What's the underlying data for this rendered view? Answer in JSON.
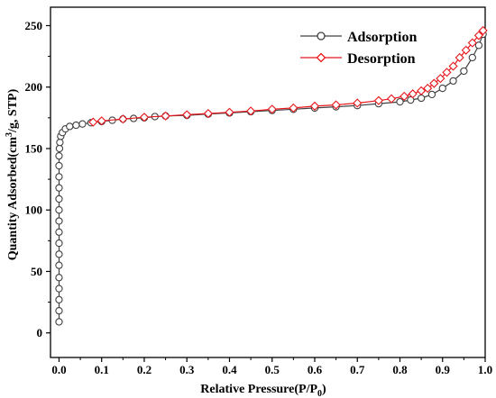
{
  "chart_data": {
    "type": "scatter",
    "xlabel": "Relative Pressure(P/P",
    "xlabel_sub": "0",
    "xlabel_end": ")",
    "ylabel_pre": "Quantity Adsorbed(cm",
    "ylabel_sup": "3",
    "ylabel_post": "/g, STP)",
    "xlim": [
      -0.02,
      1.0
    ],
    "ylim": [
      -20,
      265
    ],
    "x_ticks": [
      0.0,
      0.1,
      0.2,
      0.3,
      0.4,
      0.5,
      0.6,
      0.7,
      0.8,
      0.9,
      1.0
    ],
    "x_tick_labels": [
      "0.0",
      "0.1",
      "0.2",
      "0.3",
      "0.4",
      "0.5",
      "0.6",
      "0.7",
      "0.8",
      "0.9",
      "1.0"
    ],
    "y_ticks": [
      0,
      50,
      100,
      150,
      200,
      250
    ],
    "y_tick_labels": [
      "0",
      "50",
      "100",
      "150",
      "200",
      "250"
    ],
    "grid": false,
    "legend_position": "top-right",
    "series": [
      {
        "name": "Adsorption",
        "color": "#404040",
        "marker": "circle",
        "points": [
          [
            0.0,
            9
          ],
          [
            0.0,
            18
          ],
          [
            0.0,
            27
          ],
          [
            0.0,
            36
          ],
          [
            0.0,
            45
          ],
          [
            0.0,
            55
          ],
          [
            0.0,
            64
          ],
          [
            0.0,
            73
          ],
          [
            0.0,
            82
          ],
          [
            0.0,
            91
          ],
          [
            0.0,
            100
          ],
          [
            0.0,
            109
          ],
          [
            0.0,
            118
          ],
          [
            0.0,
            127
          ],
          [
            0.0,
            136
          ],
          [
            0.0,
            144
          ],
          [
            0.001,
            150
          ],
          [
            0.002,
            155
          ],
          [
            0.004,
            160
          ],
          [
            0.008,
            163
          ],
          [
            0.015,
            166
          ],
          [
            0.025,
            168
          ],
          [
            0.04,
            169
          ],
          [
            0.055,
            170
          ],
          [
            0.075,
            171
          ],
          [
            0.1,
            172
          ],
          [
            0.125,
            173
          ],
          [
            0.15,
            174
          ],
          [
            0.175,
            174.5
          ],
          [
            0.2,
            175
          ],
          [
            0.225,
            176
          ],
          [
            0.25,
            176.5
          ],
          [
            0.3,
            177
          ],
          [
            0.35,
            178
          ],
          [
            0.4,
            179
          ],
          [
            0.45,
            180
          ],
          [
            0.5,
            181
          ],
          [
            0.55,
            182
          ],
          [
            0.6,
            183
          ],
          [
            0.65,
            184
          ],
          [
            0.7,
            185
          ],
          [
            0.75,
            186.5
          ],
          [
            0.8,
            188
          ],
          [
            0.825,
            189.5
          ],
          [
            0.85,
            191
          ],
          [
            0.875,
            194
          ],
          [
            0.9,
            199
          ],
          [
            0.925,
            205
          ],
          [
            0.95,
            213
          ],
          [
            0.97,
            224
          ],
          [
            0.985,
            234
          ],
          [
            0.995,
            243
          ]
        ]
      },
      {
        "name": "Desorption",
        "color": "#e8171c",
        "marker": "diamond",
        "points": [
          [
            0.995,
            246
          ],
          [
            0.985,
            242
          ],
          [
            0.97,
            236
          ],
          [
            0.955,
            230
          ],
          [
            0.94,
            224
          ],
          [
            0.925,
            217
          ],
          [
            0.91,
            212
          ],
          [
            0.895,
            207
          ],
          [
            0.88,
            203
          ],
          [
            0.865,
            199
          ],
          [
            0.85,
            197
          ],
          [
            0.83,
            194.5
          ],
          [
            0.81,
            192.5
          ],
          [
            0.78,
            190.5
          ],
          [
            0.75,
            189
          ],
          [
            0.7,
            187
          ],
          [
            0.65,
            185.5
          ],
          [
            0.6,
            184.5
          ],
          [
            0.55,
            183
          ],
          [
            0.5,
            182
          ],
          [
            0.45,
            180.5
          ],
          [
            0.4,
            179.5
          ],
          [
            0.35,
            178.5
          ],
          [
            0.3,
            177.5
          ],
          [
            0.25,
            176.5
          ],
          [
            0.2,
            175.5
          ],
          [
            0.15,
            174
          ],
          [
            0.1,
            172.5
          ],
          [
            0.08,
            171.5
          ]
        ]
      }
    ]
  }
}
